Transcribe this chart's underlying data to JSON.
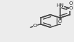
{
  "bg_color": "#ececec",
  "line_color": "#444444",
  "line_width": 1.1,
  "text_color": "#222222",
  "font_size": 5.2
}
